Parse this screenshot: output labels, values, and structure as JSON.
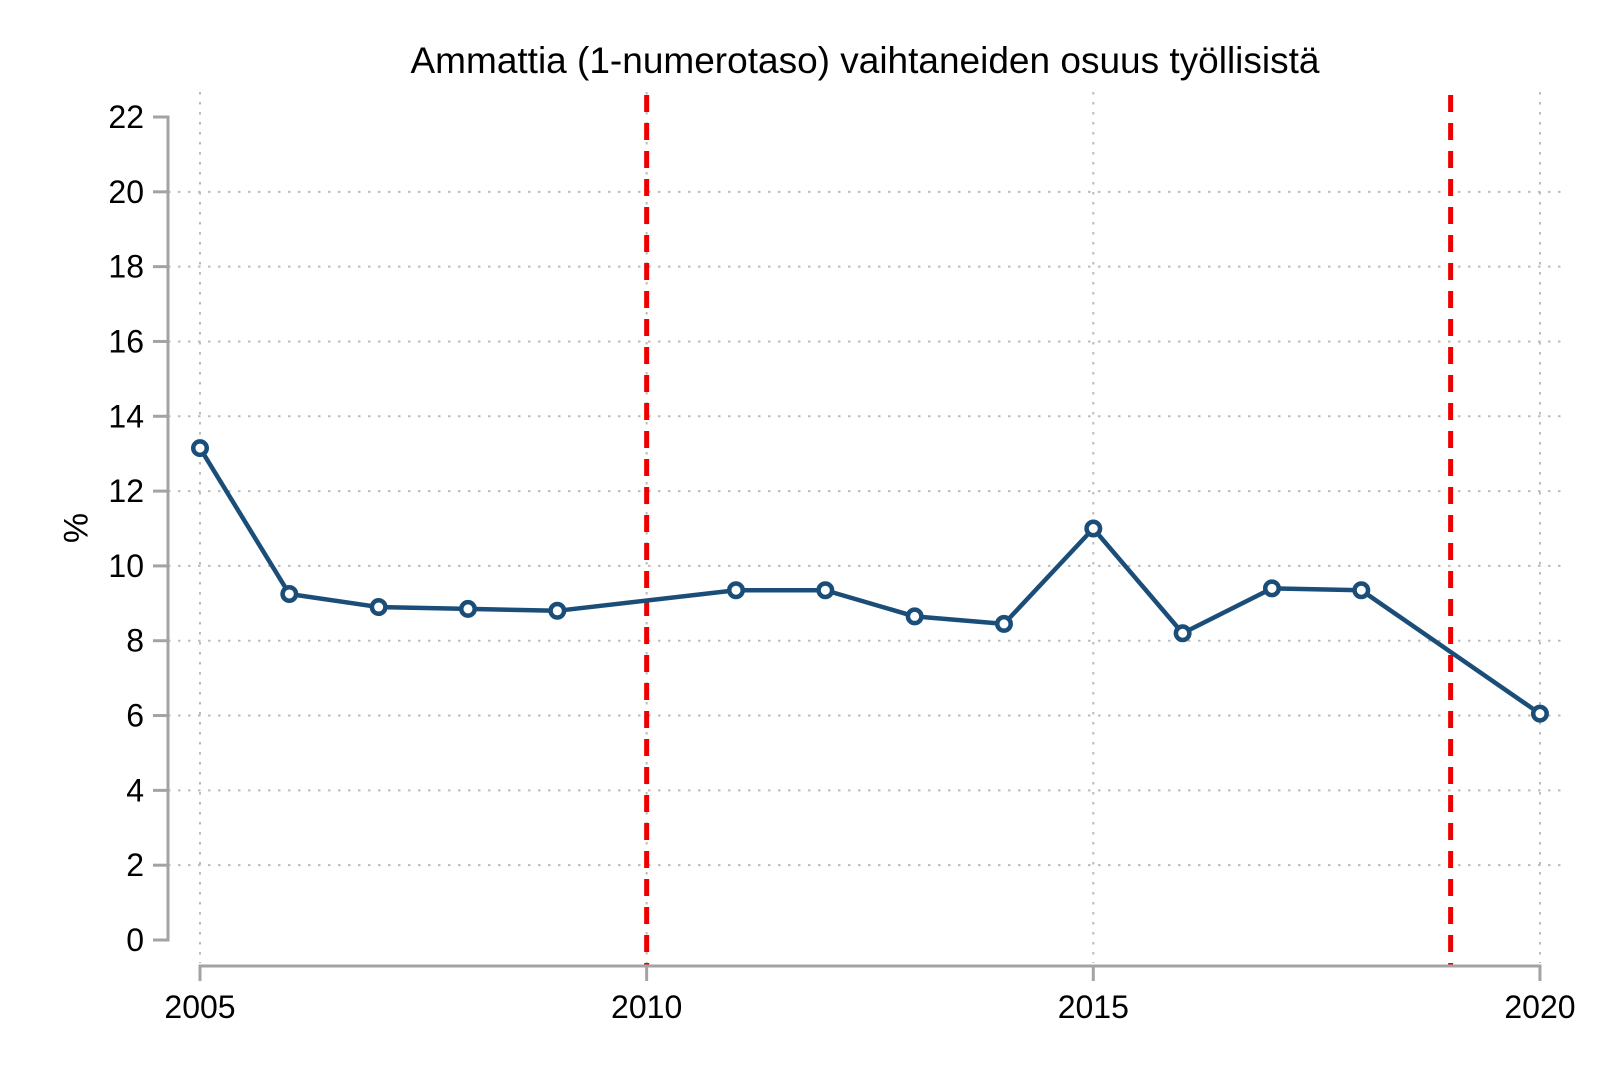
{
  "chart_data": {
    "type": "line",
    "title": "Ammattia (1-numerotaso) vaihtaneiden osuus työllisistä",
    "xlabel": "",
    "ylabel": "%",
    "x": [
      2005,
      2006,
      2007,
      2008,
      2009,
      2010,
      2011,
      2012,
      2013,
      2014,
      2015,
      2016,
      2017,
      2018,
      2019,
      2020
    ],
    "series": [
      {
        "values": [
          13.15,
          9.25,
          8.9,
          8.85,
          8.8,
          null,
          9.35,
          9.35,
          8.65,
          8.45,
          11.0,
          8.2,
          9.4,
          9.35,
          null,
          6.05
        ],
        "note_missing_years_connected_straight": [
          2010,
          2019
        ]
      }
    ],
    "x_ticks": [
      2005,
      2010,
      2015,
      2020
    ],
    "y_ticks": [
      0,
      2,
      4,
      6,
      8,
      10,
      12,
      14,
      16,
      18,
      20,
      22
    ],
    "xlim": [
      2005,
      2020
    ],
    "ylim": [
      0,
      22
    ],
    "event_lines": {
      "years": [
        2010,
        2019
      ],
      "style": "dashed"
    },
    "grid": {
      "horizontal_dotted_at": [
        2,
        4,
        6,
        8,
        10,
        12,
        14,
        16,
        18,
        20
      ],
      "vertical_dotted_at": [
        2005,
        2010,
        2015,
        2020
      ]
    },
    "legend": "none",
    "colors": {
      "line": "#1a4e78",
      "marker_fill": "#ffffff",
      "event_line": "#ee0000",
      "grid": "#bbbbbb",
      "axis": "#a3a3a3",
      "text": "#000000"
    }
  }
}
